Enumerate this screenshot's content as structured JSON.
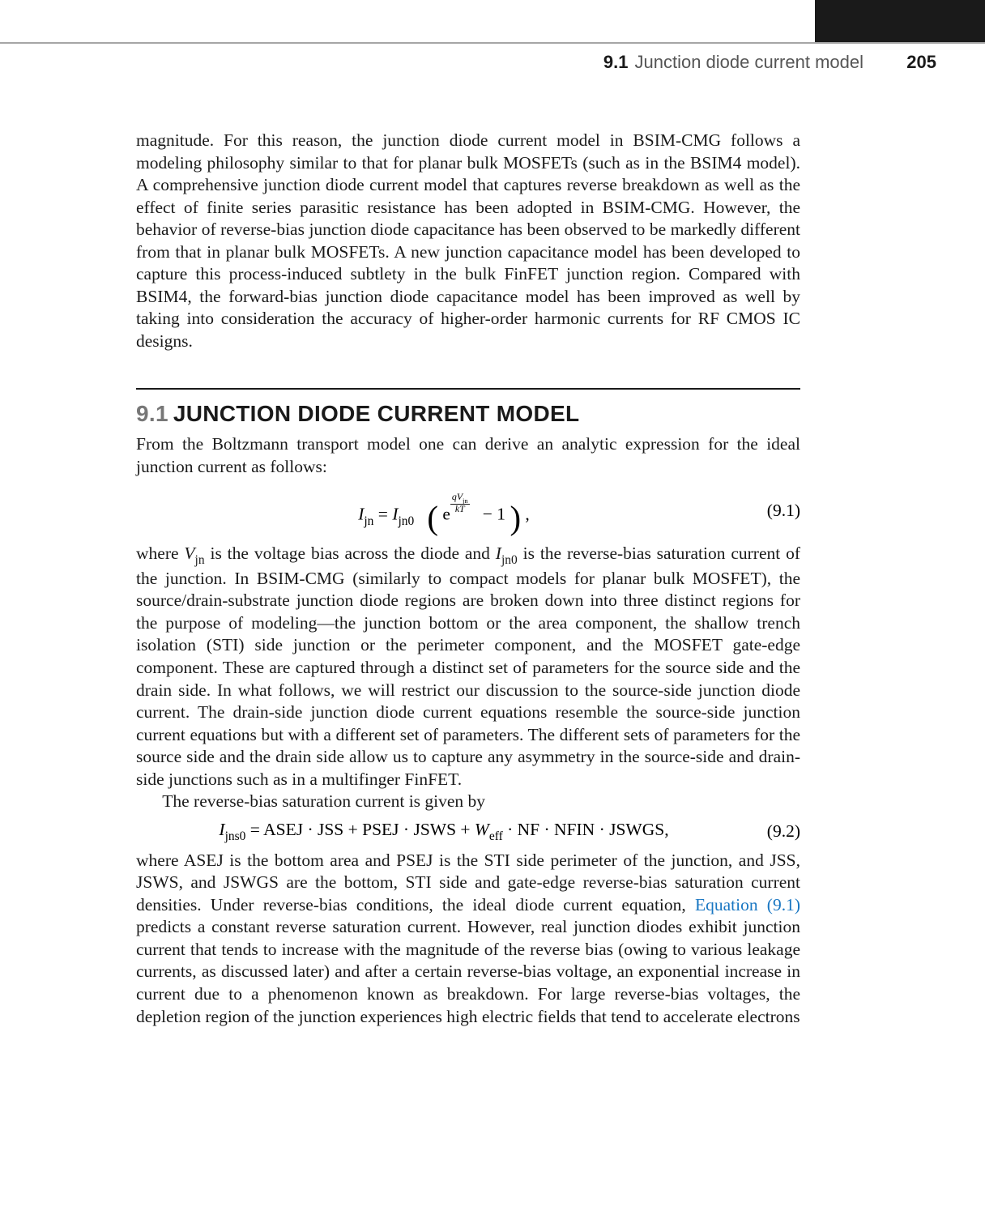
{
  "header": {
    "section_num": "9.1",
    "section_title": "Junction diode current model",
    "page_number": "205"
  },
  "intro_paragraph": "magnitude. For this reason, the junction diode current model in BSIM-CMG follows a modeling philosophy similar to that for planar bulk MOSFETs (such as in the BSIM4 model). A comprehensive junction diode current model that captures reverse breakdown as well as the effect of finite series parasitic resistance has been adopted in BSIM-CMG. However, the behavior of reverse-bias junction diode capacitance has been observed to be markedly different from that in planar bulk MOSFETs. A new junction capacitance model has been developed to capture this process-induced subtlety in the bulk FinFET junction region. Compared with BSIM4, the forward-bias junction diode capacitance model has been improved as well by taking into consideration the accuracy of higher-order harmonic currents for RF CMOS IC designs.",
  "section": {
    "number": "9.1",
    "title": "JUNCTION DIODE CURRENT MODEL"
  },
  "p1": "From the Boltzmann transport model one can derive an analytic expression for the ideal junction current as follows:",
  "eq1": {
    "lhs_sym": "I",
    "lhs_sub": "jn",
    "rhs_sym": "I",
    "rhs_sub": "jn0",
    "exp_num_q": "q",
    "exp_num_V": "V",
    "exp_num_sub": "jn",
    "exp_den": "kT",
    "minus1": "− 1",
    "number": "(9.1)"
  },
  "p2_a": "where ",
  "p2_Vjn_sym": "V",
  "p2_Vjn_sub": "jn",
  "p2_b": " is the voltage bias across the diode and ",
  "p2_Ijn0_sym": "I",
  "p2_Ijn0_sub": "jn0",
  "p2_c": " is the reverse-bias saturation current of the junction. In BSIM-CMG (similarly to compact models for planar bulk MOSFET), the source/drain-substrate junction diode regions are broken down into three distinct regions for the purpose of modeling—the junction bottom or the area component, the shallow trench isolation (STI) side junction or the perimeter component, and the MOSFET gate-edge component. These are captured through a distinct set of parameters for the source side and the drain side. In what follows, we will restrict our discussion to the source-side junction diode current. The drain-side junction diode current equations resemble the source-side junction current equations but with a different set of parameters. The different sets of parameters for the source side and the drain side allow us to capture any asymmetry in the source-side and drain-side junctions such as in a multifinger FinFET.",
  "p3": "The reverse-bias saturation current is given by",
  "eq2": {
    "lhs_sym": "I",
    "lhs_sub": "jns0",
    "eq": " = ASEJ · JSS + PSEJ · JSWS + ",
    "W": "W",
    "Wsub": "eff",
    "tail": " · NF · NFIN · JSWGS,",
    "number": "(9.2)"
  },
  "p4_a": "where ASEJ is the bottom area and PSEJ is the STI side perimeter of the junction, and JSS, JSWS, and JSWGS are the bottom, STI side and gate-edge reverse-bias saturation current densities. Under reverse-bias conditions, the ideal diode current equation, ",
  "p4_link": "Equation (9.1)",
  "p4_b": " predicts a constant reverse saturation current. However, real junction diodes exhibit junction current that tends to increase with the magnitude of the reverse bias (owing to various leakage currents, as discussed later) and after a certain reverse-bias voltage, an exponential increase in current due to a phenomenon known as breakdown. For large reverse-bias voltages, the depletion region of the junction experiences high electric fields that tend to accelerate electrons"
}
